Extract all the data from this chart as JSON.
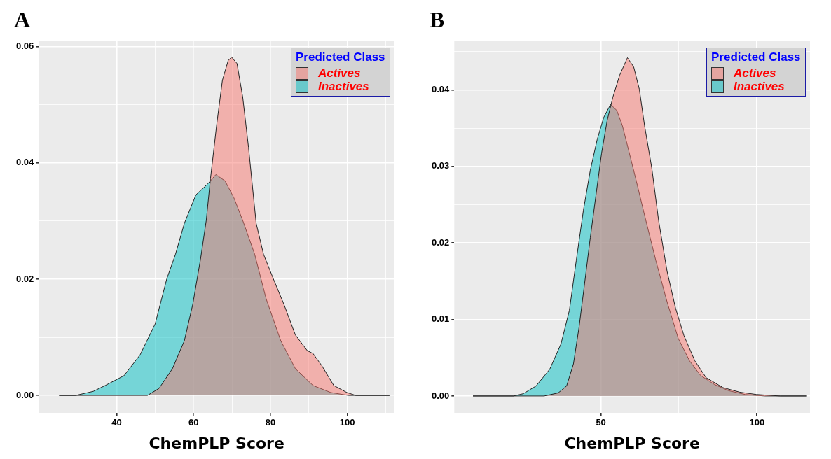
{
  "chart_data": [
    {
      "type": "area",
      "title": "A",
      "xlabel": "ChemPLP Score",
      "legend_title": "Predicted Class",
      "legend": "top right",
      "grid": true,
      "xlim": [
        19.7,
        112.3
      ],
      "ylim": [
        -0.003,
        0.061
      ],
      "xticks": [
        {
          "value": 30,
          "label": null
        },
        40,
        {
          "value": 50,
          "label": null
        },
        60,
        {
          "value": 70,
          "label": null
        },
        80,
        {
          "value": 90,
          "label": null
        },
        100,
        {
          "value": 110,
          "label": null
        }
      ],
      "yticks": [
        {
          "value": 0,
          "label": "0.00"
        },
        {
          "value": 0.01,
          "label": null
        },
        0.02,
        {
          "value": 0.03,
          "label": null
        },
        0.04,
        {
          "value": 0.05,
          "label": null
        },
        0.06
      ],
      "series": [
        {
          "name": "Actives",
          "color": "#f8766d",
          "x": [
            25,
            48,
            51,
            54.5,
            57.6,
            59.8,
            61.8,
            63.3,
            64.4,
            66,
            67.5,
            69,
            69.9,
            71.3,
            72.8,
            74.3,
            76.3,
            78.2,
            80.8,
            83.5,
            86.5,
            89.6,
            91.1,
            93.4,
            96.5,
            99.9,
            102.2,
            111
          ],
          "values": [
            0,
            0,
            0.0012,
            0.0046,
            0.0094,
            0.0157,
            0.0234,
            0.0301,
            0.0373,
            0.0465,
            0.0542,
            0.0576,
            0.0582,
            0.0571,
            0.0513,
            0.0427,
            0.0296,
            0.0243,
            0.02,
            0.0157,
            0.0104,
            0.0077,
            0.0072,
            0.0051,
            0.0017,
            0.0005,
            0,
            0
          ]
        },
        {
          "name": "Inactives",
          "color": "#00bfc4",
          "x": [
            25,
            29.3,
            33.9,
            37,
            41.9,
            46.1,
            50,
            53,
            55.3,
            57.6,
            60.6,
            63.7,
            65.8,
            68.2,
            70.5,
            72.8,
            75.9,
            78.9,
            82.7,
            86.5,
            91.1,
            95.7,
            100.3,
            111
          ],
          "values": [
            0,
            0,
            0.0007,
            0.0017,
            0.0034,
            0.007,
            0.0123,
            0.02,
            0.0243,
            0.0296,
            0.0345,
            0.0364,
            0.038,
            0.0369,
            0.034,
            0.0301,
            0.0243,
            0.0166,
            0.0094,
            0.0046,
            0.0017,
            0.0005,
            0,
            0
          ]
        }
      ]
    },
    {
      "type": "area",
      "title": "B",
      "xlabel": "ChemPLP Score",
      "legend_title": "Predicted Class",
      "legend": "top right",
      "grid": true,
      "xlim": [
        3,
        117
      ],
      "ylim": [
        -0.0022,
        0.0464
      ],
      "xticks": [
        {
          "value": 25,
          "label": null
        },
        50,
        {
          "value": 75,
          "label": null
        },
        100
      ],
      "yticks": [
        {
          "value": 0,
          "label": "0.00"
        },
        {
          "value": 0.005,
          "label": null
        },
        0.01,
        {
          "value": 0.015,
          "label": null
        },
        0.02,
        {
          "value": 0.025,
          "label": null
        },
        0.03,
        {
          "value": 0.035,
          "label": null
        },
        0.04,
        {
          "value": 0.045,
          "label": null
        }
      ],
      "series": [
        {
          "name": "Actives",
          "color": "#f8766d",
          "x": [
            9,
            31.8,
            36.3,
            39,
            41.2,
            43,
            44.8,
            46.6,
            48.4,
            50.2,
            52,
            53.8,
            56,
            58.5,
            60.5,
            62.3,
            64,
            66.3,
            68.5,
            71.2,
            73.9,
            76.6,
            80.1,
            83.7,
            89.1,
            94.5,
            99.8,
            107.4,
            116
          ],
          "values": [
            0,
            0,
            0.0004,
            0.0013,
            0.0042,
            0.009,
            0.0148,
            0.0207,
            0.0262,
            0.0317,
            0.036,
            0.039,
            0.0419,
            0.0442,
            0.043,
            0.0401,
            0.0353,
            0.0298,
            0.0229,
            0.0163,
            0.0115,
            0.0079,
            0.0046,
            0.0024,
            0.0011,
            0.0005,
            0.0002,
            0,
            0
          ]
        },
        {
          "name": "Inactives",
          "color": "#00bfc4",
          "x": [
            9,
            22,
            25.1,
            29.2,
            33.6,
            37.2,
            39.9,
            42.1,
            44.4,
            46.6,
            48.8,
            50.9,
            53.1,
            55.1,
            56.9,
            58.7,
            61.4,
            64,
            67.6,
            71.2,
            74.8,
            78.4,
            81.9,
            86.4,
            90.9,
            96.2,
            102.5,
            116
          ],
          "values": [
            0,
            0,
            0.0003,
            0.0013,
            0.0035,
            0.0068,
            0.0112,
            0.0177,
            0.0243,
            0.0295,
            0.0335,
            0.0364,
            0.0381,
            0.0373,
            0.0353,
            0.0324,
            0.028,
            0.0236,
            0.0177,
            0.0123,
            0.0075,
            0.0046,
            0.0027,
            0.0015,
            0.0007,
            0.0002,
            0,
            0
          ]
        }
      ]
    }
  ]
}
